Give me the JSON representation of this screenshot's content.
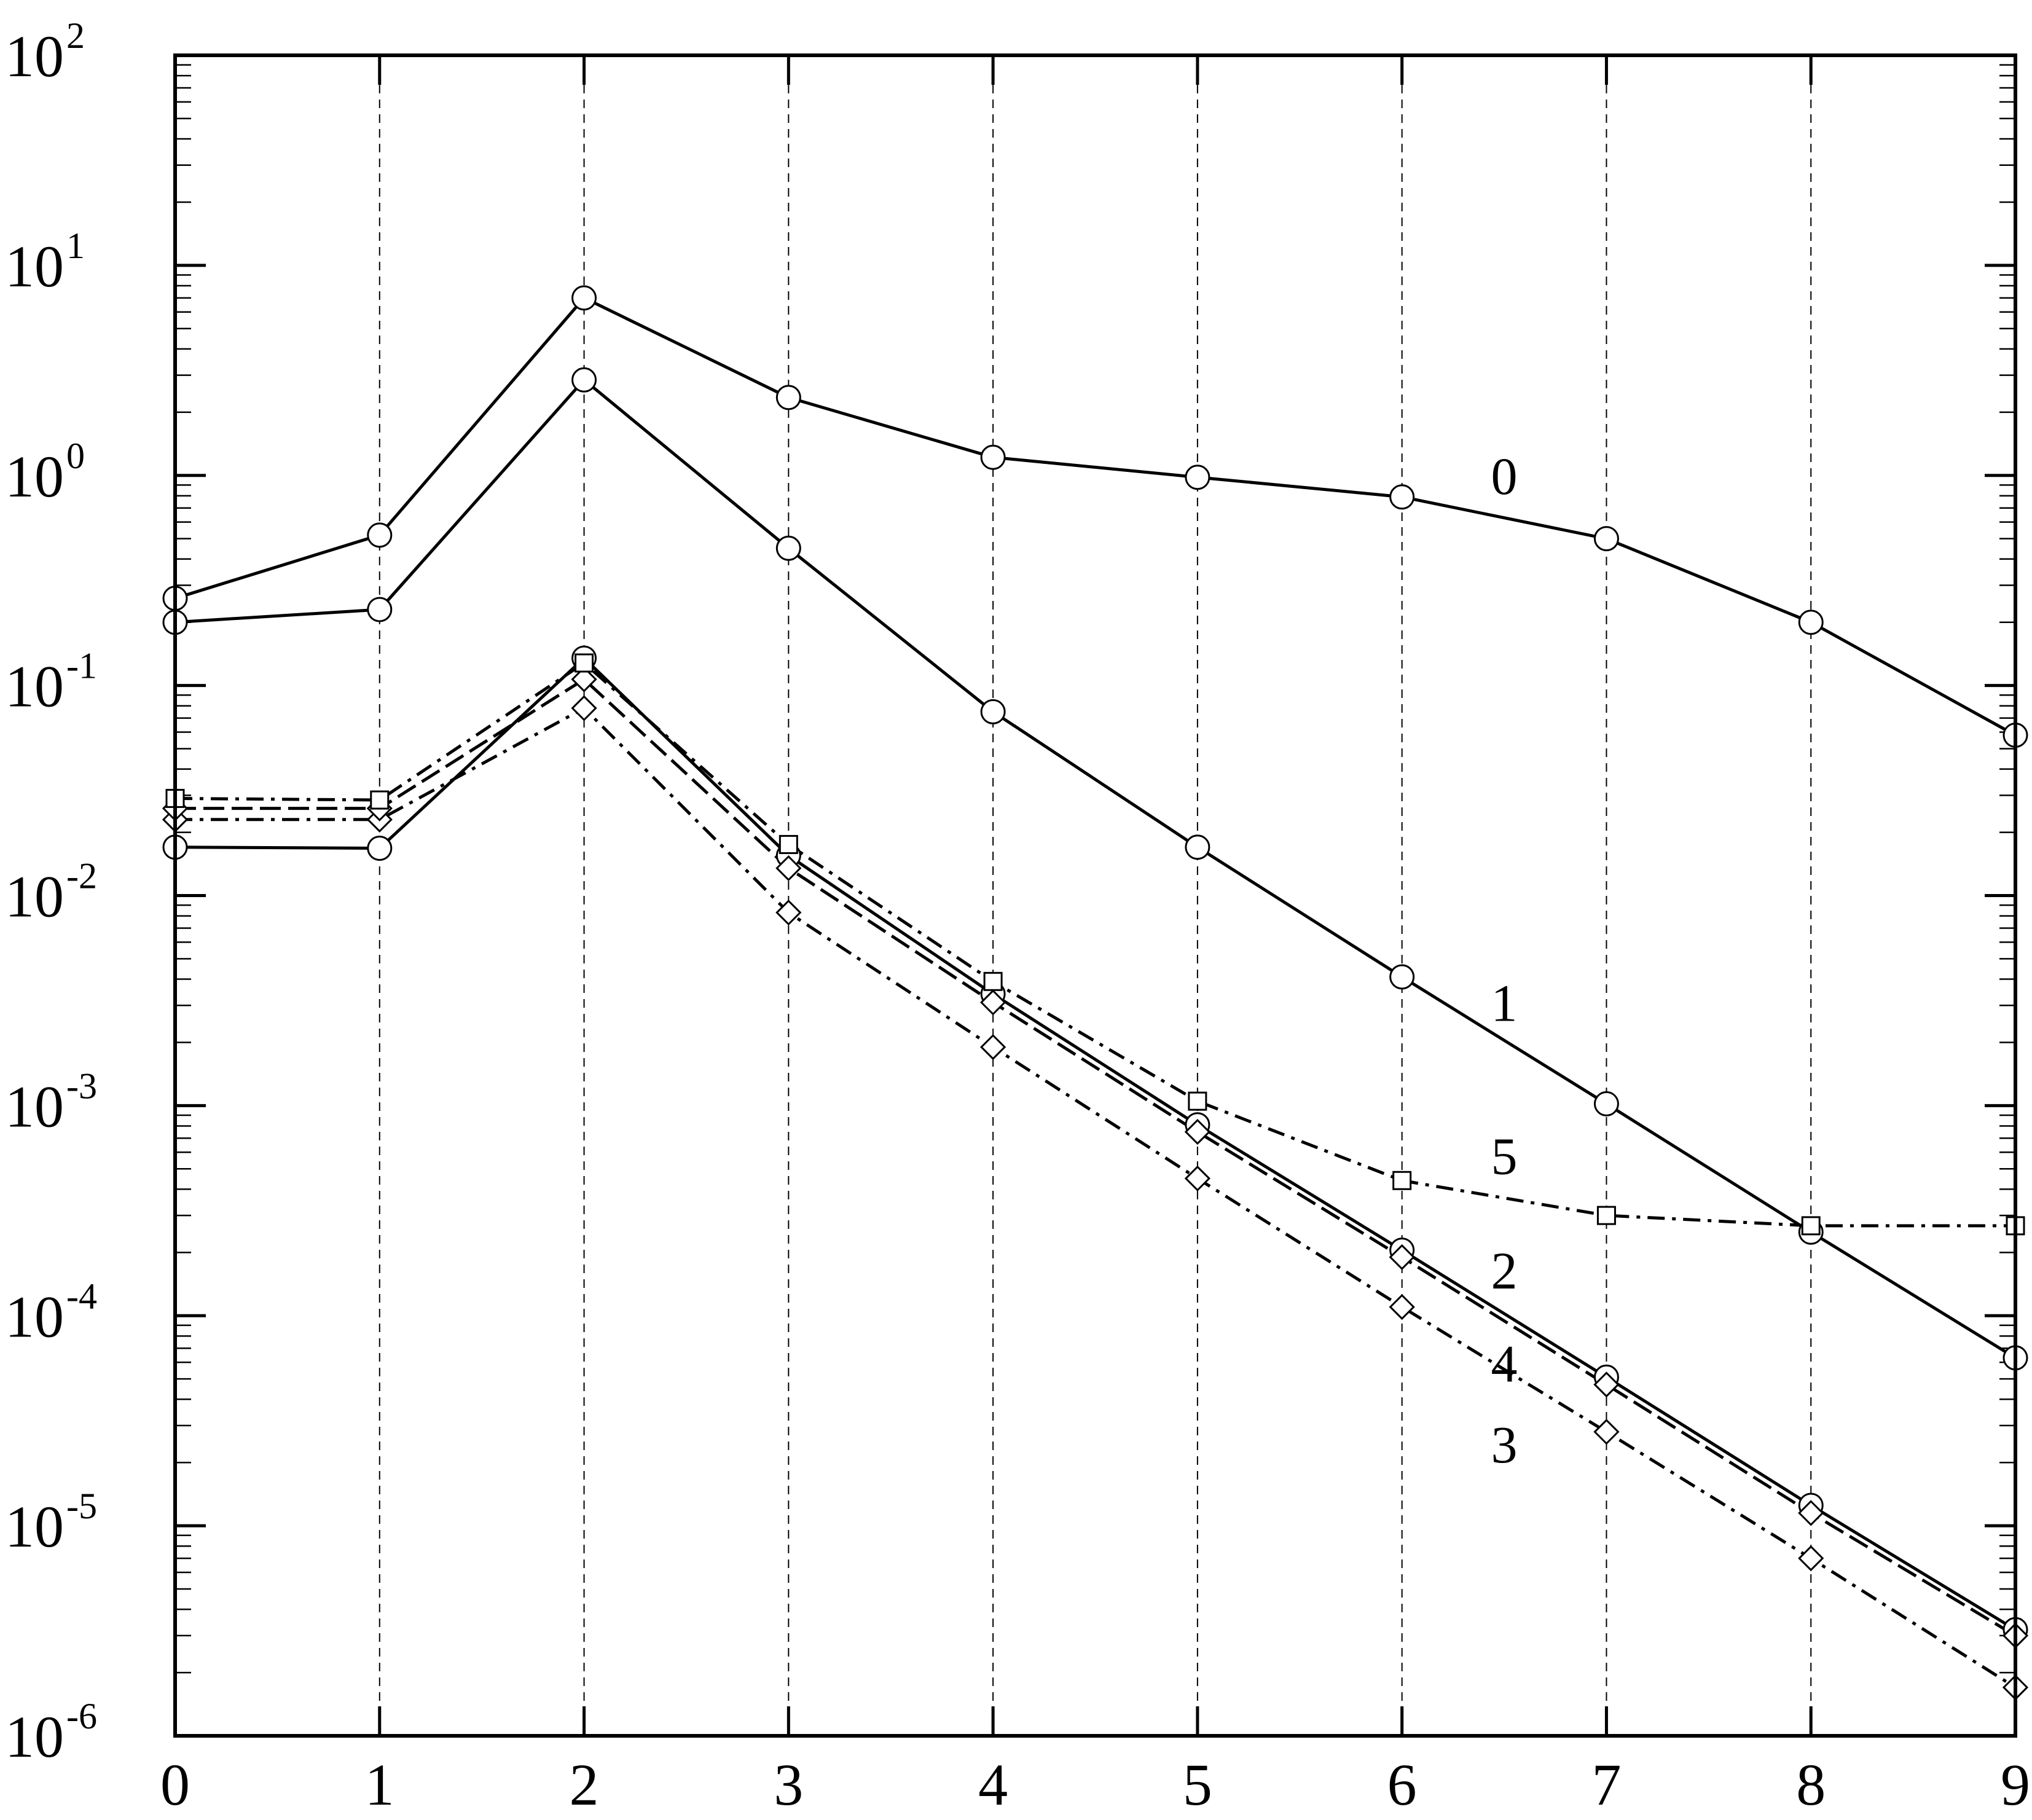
{
  "chart_data": {
    "type": "line",
    "title": "",
    "xlabel": "",
    "ylabel": "",
    "x": [
      0,
      1,
      2,
      3,
      4,
      5,
      6,
      7,
      8,
      9
    ],
    "xlim": [
      0,
      9
    ],
    "ylim": [
      1e-06,
      100
    ],
    "yscale": "log",
    "grid": {
      "x": true,
      "y": false,
      "style": "dashed"
    },
    "x_tick_labels": [
      "0",
      "1",
      "2",
      "3",
      "4",
      "5",
      "6",
      "7",
      "8",
      "9"
    ],
    "y_tick_labels": [
      {
        "base": "10",
        "exp": "-6"
      },
      {
        "base": "10",
        "exp": "-5"
      },
      {
        "base": "10",
        "exp": "-4"
      },
      {
        "base": "10",
        "exp": "-3"
      },
      {
        "base": "10",
        "exp": "-2"
      },
      {
        "base": "10",
        "exp": "-1"
      },
      {
        "base": "10",
        "exp": "0"
      },
      {
        "base": "10",
        "exp": "1"
      },
      {
        "base": "10",
        "exp": "2"
      }
    ],
    "series": [
      {
        "label": "0",
        "line": "solid",
        "marker": "circle",
        "values": [
          0.26,
          0.52,
          7.0,
          2.35,
          1.22,
          0.98,
          0.79,
          0.5,
          0.2,
          0.058
        ]
      },
      {
        "label": "1",
        "line": "solid",
        "marker": "circle",
        "values": [
          0.2,
          0.23,
          2.85,
          0.45,
          0.075,
          0.017,
          0.0041,
          0.00102,
          0.00025,
          6.3e-05
        ]
      },
      {
        "label": "2",
        "line": "solid",
        "marker": "circle",
        "values": [
          0.017,
          0.0168,
          0.135,
          0.0155,
          0.0034,
          0.00081,
          0.000205,
          5.1e-05,
          1.25e-05,
          3.2e-06
        ]
      },
      {
        "label": "3",
        "line": "dashdot",
        "marker": "diamond",
        "values": [
          0.023,
          0.023,
          0.078,
          0.0083,
          0.0019,
          0.00045,
          0.00011,
          2.8e-05,
          7e-06,
          1.7e-06
        ]
      },
      {
        "label": "4",
        "line": "dashed",
        "marker": "diamond",
        "values": [
          0.026,
          0.026,
          0.107,
          0.0135,
          0.0031,
          0.00075,
          0.00019,
          4.7e-05,
          1.15e-05,
          3e-06
        ]
      },
      {
        "label": "5",
        "line": "dashdot",
        "marker": "square",
        "values": [
          0.029,
          0.0285,
          0.128,
          0.0175,
          0.0039,
          0.00105,
          0.00044,
          0.0003,
          0.000268,
          0.000268
        ]
      }
    ],
    "series_label_positions": [
      {
        "label": "0",
        "x": 6.5,
        "y": 1.0
      },
      {
        "label": "1",
        "x": 6.5,
        "y": 0.0031
      },
      {
        "label": "5",
        "x": 6.5,
        "y": 0.00058
      },
      {
        "label": "2",
        "x": 6.5,
        "y": 0.000165
      },
      {
        "label": "4",
        "x": 6.5,
        "y": 5.95e-05
      },
      {
        "label": "3",
        "x": 6.5,
        "y": 2.45e-05
      }
    ]
  }
}
